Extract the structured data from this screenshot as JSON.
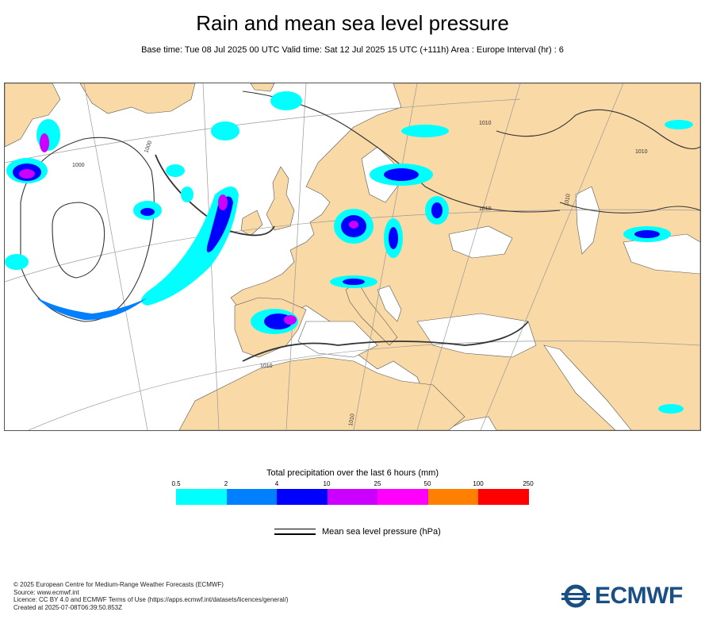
{
  "title": "Rain and mean sea level pressure",
  "subtitle": "Base time: Tue 08 Jul 2025 00 UTC Valid time: Sat 12 Jul 2025 15 UTC (+111h) Area : Europe Interval (hr) : 6",
  "map": {
    "isobar_labels": [
      "1000",
      "1000",
      "1010",
      "1010",
      "1010",
      "1010",
      "1010",
      "1010"
    ],
    "colors": {
      "sea": "#ffffff",
      "land": "#f9d9a6",
      "isobar": "#333333"
    }
  },
  "legend": {
    "title": "Total precipitation over the last 6 hours (mm)",
    "ticks": [
      "0.5",
      "2",
      "4",
      "10",
      "25",
      "50",
      "100",
      "250"
    ],
    "colors": [
      "#00ffff",
      "#0080ff",
      "#0000ff",
      "#cc00ff",
      "#ff00ff",
      "#ff8000",
      "#ff0000"
    ],
    "mslp_label": "Mean sea level pressure (hPa)"
  },
  "footer": {
    "lines": [
      "© 2025 European Centre for Medium-Range Weather Forecasts (ECMWF)",
      "Source: www.ecmwf.int",
      "Licence: CC BY 4.0 and ECMWF Terms of Use (https://apps.ecmwf.int/datasets/licences/general/)",
      "Created at 2025-07-08T06:39:50.853Z"
    ]
  },
  "logo": {
    "text": "ECMWF",
    "color": "#1a4f84"
  }
}
